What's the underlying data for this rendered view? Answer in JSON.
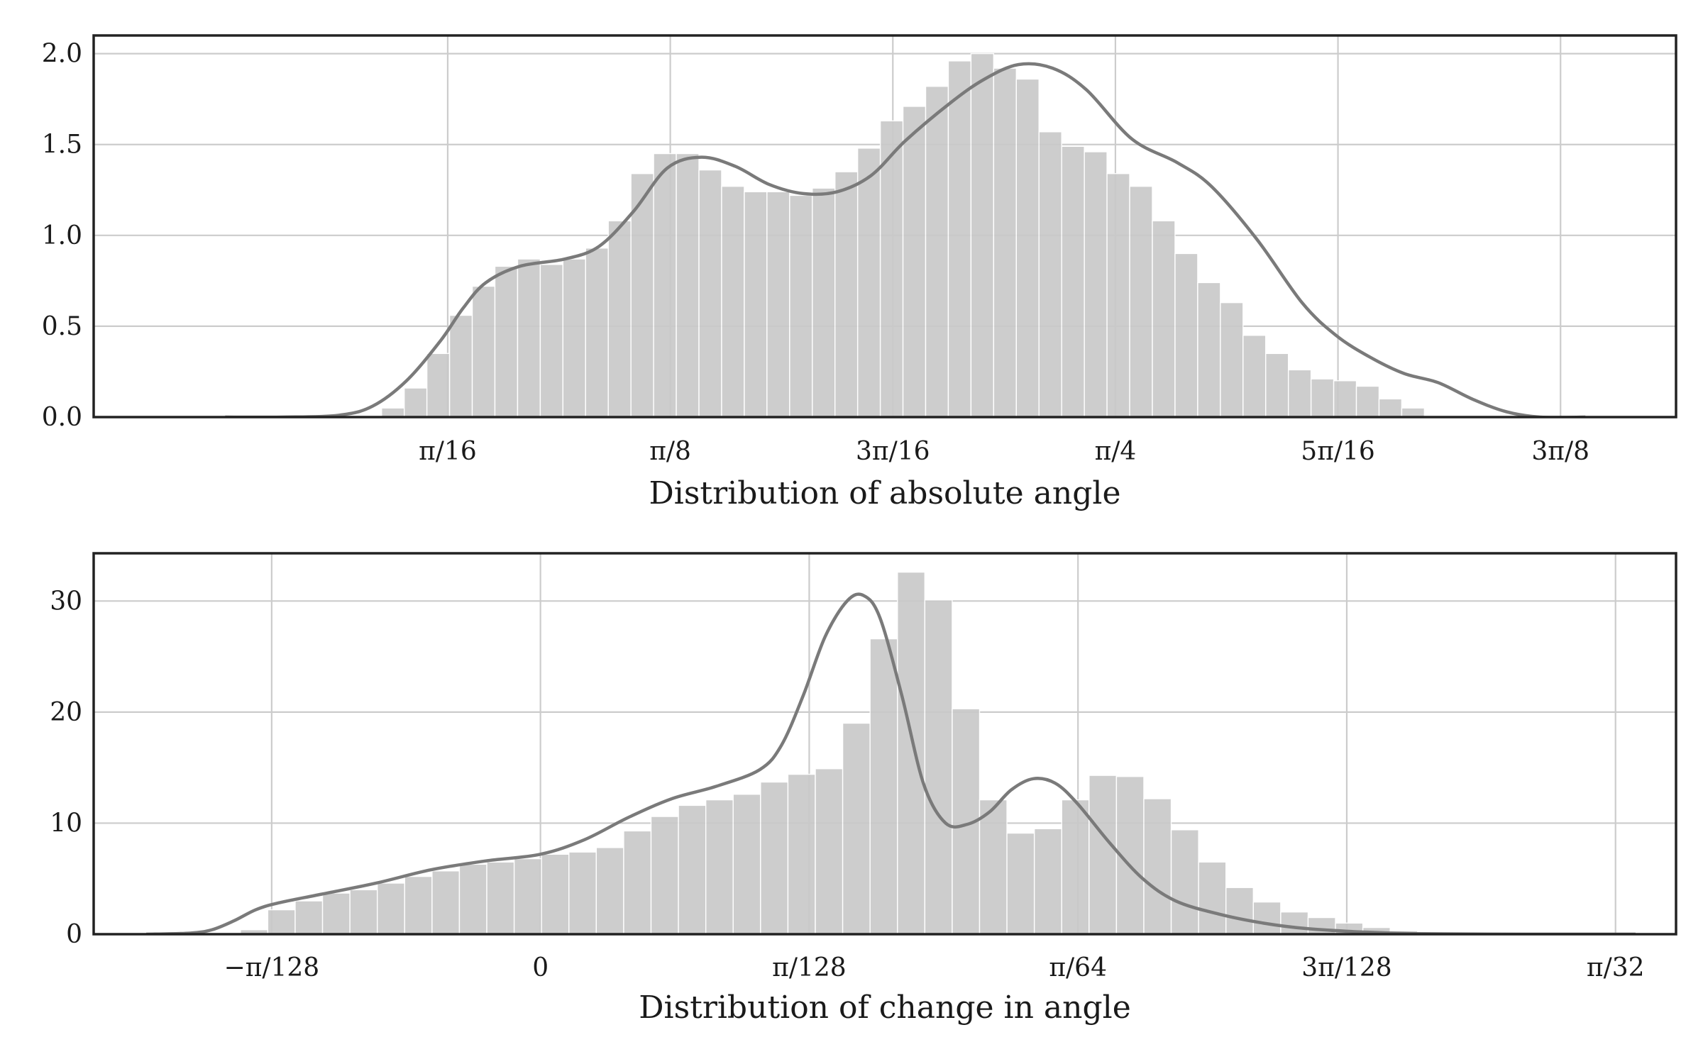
{
  "chart_data": [
    {
      "type": "bar",
      "subtype": "histogram-with-kde",
      "xlabel": "Distribution of absolute angle",
      "ylabel": "",
      "title": "",
      "xlim": [
        -0.116,
        1.28
      ],
      "ylim": [
        0,
        2.1
      ],
      "xticks": [
        {
          "value": 0.19635,
          "label": "π/16"
        },
        {
          "value": 0.3927,
          "label": "π/8"
        },
        {
          "value": 0.58905,
          "label": "3π/16"
        },
        {
          "value": 0.7854,
          "label": "π/4"
        },
        {
          "value": 0.98175,
          "label": "5π/16"
        },
        {
          "value": 1.1781,
          "label": "3π/8"
        }
      ],
      "yticks": [
        {
          "value": 0,
          "label": "0.0"
        },
        {
          "value": 0.5,
          "label": "0.5"
        },
        {
          "value": 1.0,
          "label": "1.0"
        },
        {
          "value": 1.5,
          "label": "1.5"
        },
        {
          "value": 2.0,
          "label": "2.0"
        }
      ],
      "grid": true,
      "bar_color": "#c9c9c9",
      "line_color": "#7a7a7a",
      "bins": {
        "start": 0.138,
        "width": 0.02,
        "values": [
          0.05,
          0.16,
          0.35,
          0.56,
          0.72,
          0.83,
          0.87,
          0.84,
          0.87,
          0.93,
          1.08,
          1.34,
          1.45,
          1.45,
          1.36,
          1.27,
          1.24,
          1.24,
          1.22,
          1.26,
          1.35,
          1.48,
          1.63,
          1.71,
          1.82,
          1.96,
          2.0,
          1.92,
          1.86,
          1.57,
          1.49,
          1.46,
          1.34,
          1.27,
          1.08,
          0.9,
          0.74,
          0.63,
          0.45,
          0.35,
          0.26,
          0.21,
          0.2,
          0.17,
          0.1,
          0.05
        ]
      },
      "kde": {
        "x": [
          0.0,
          0.05,
          0.1,
          0.13,
          0.16,
          0.19,
          0.21,
          0.23,
          0.26,
          0.3,
          0.33,
          0.36,
          0.39,
          0.42,
          0.45,
          0.48,
          0.51,
          0.54,
          0.57,
          0.6,
          0.64,
          0.67,
          0.7,
          0.73,
          0.76,
          0.8,
          0.84,
          0.87,
          0.91,
          0.95,
          0.98,
          1.01,
          1.04,
          1.07,
          1.1,
          1.13,
          1.16,
          1.2
        ],
        "y": [
          0.0,
          0.0,
          0.01,
          0.06,
          0.2,
          0.42,
          0.6,
          0.74,
          0.83,
          0.87,
          0.94,
          1.13,
          1.37,
          1.43,
          1.38,
          1.28,
          1.23,
          1.24,
          1.33,
          1.52,
          1.73,
          1.86,
          1.94,
          1.92,
          1.8,
          1.53,
          1.4,
          1.27,
          0.98,
          0.63,
          0.45,
          0.33,
          0.24,
          0.19,
          0.1,
          0.03,
          0.0,
          0.0
        ]
      }
    },
    {
      "type": "bar",
      "subtype": "histogram-with-kde",
      "xlabel": "Distribution of change in angle",
      "ylabel": "",
      "title": "",
      "xlim": [
        -0.0408,
        0.1037
      ],
      "ylim": [
        0,
        34.3
      ],
      "xticks": [
        {
          "value": -0.024544,
          "label": "−π/128"
        },
        {
          "value": 0.0,
          "label": "0"
        },
        {
          "value": 0.024544,
          "label": "π/128"
        },
        {
          "value": 0.049087,
          "label": "π/64"
        },
        {
          "value": 0.073631,
          "label": "3π/128"
        },
        {
          "value": 0.098175,
          "label": "π/32"
        }
      ],
      "yticks": [
        {
          "value": 0,
          "label": "0"
        },
        {
          "value": 10,
          "label": "10"
        },
        {
          "value": 20,
          "label": "20"
        },
        {
          "value": 30,
          "label": "30"
        }
      ],
      "grid": true,
      "bar_color": "#c9c9c9",
      "line_color": "#7a7a7a",
      "bins": {
        "start": -0.0274,
        "width": 0.0025,
        "values": [
          0.4,
          2.2,
          3.0,
          3.7,
          4.0,
          4.6,
          5.2,
          5.7,
          6.3,
          6.5,
          6.8,
          7.2,
          7.4,
          7.8,
          9.3,
          10.6,
          11.6,
          12.1,
          12.6,
          13.7,
          14.4,
          14.9,
          19.0,
          26.6,
          32.6,
          30.1,
          20.3,
          12.1,
          9.1,
          9.5,
          12.1,
          14.3,
          14.2,
          12.2,
          9.4,
          6.5,
          4.2,
          2.9,
          2.0,
          1.5,
          1.0,
          0.6,
          0.3
        ]
      },
      "kde": {
        "x": [
          -0.036,
          -0.032,
          -0.03,
          -0.028,
          -0.026,
          -0.024,
          -0.02,
          -0.015,
          -0.01,
          -0.005,
          0.0,
          0.004,
          0.008,
          0.012,
          0.016,
          0.02,
          0.022,
          0.024,
          0.026,
          0.028,
          0.0295,
          0.031,
          0.033,
          0.035,
          0.037,
          0.039,
          0.041,
          0.043,
          0.045,
          0.047,
          0.049,
          0.052,
          0.055,
          0.058,
          0.062,
          0.066,
          0.07,
          0.075,
          0.08,
          0.09,
          0.1
        ],
        "y": [
          0.0,
          0.1,
          0.4,
          1.2,
          2.2,
          2.8,
          3.6,
          4.6,
          5.8,
          6.6,
          7.2,
          8.5,
          10.5,
          12.2,
          13.3,
          14.8,
          17.0,
          21.5,
          26.8,
          30.0,
          30.5,
          28.5,
          21.5,
          13.5,
          10.0,
          9.9,
          11.0,
          13.0,
          14.0,
          13.6,
          11.8,
          8.2,
          5.0,
          3.0,
          1.8,
          1.0,
          0.5,
          0.2,
          0.05,
          0.0,
          0.0
        ]
      }
    }
  ]
}
